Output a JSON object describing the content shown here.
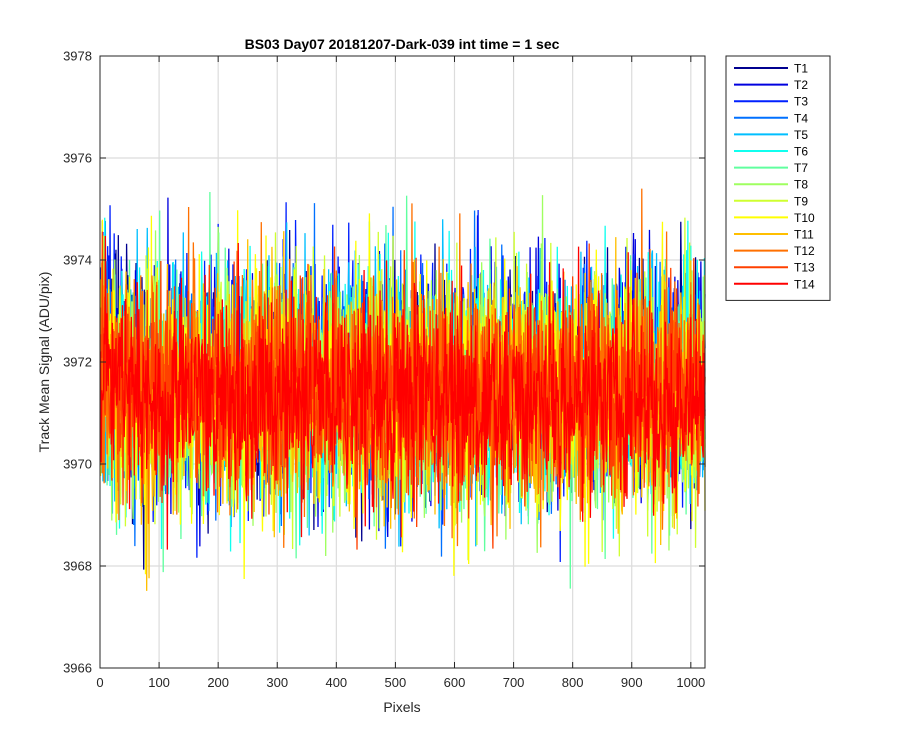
{
  "chart_data": {
    "type": "line",
    "title": "BS03 Day07 20181207-Dark-039 int time = 1 sec",
    "xlabel": "Pixels",
    "ylabel": "Track Mean Signal (ADU/pix)",
    "xlim": [
      0,
      1024
    ],
    "ylim": [
      3966,
      3978
    ],
    "xticks": [
      0,
      100,
      200,
      300,
      400,
      500,
      600,
      700,
      800,
      900,
      1000
    ],
    "yticks": [
      3966,
      3968,
      3970,
      3972,
      3974,
      3976,
      3978
    ],
    "xtick_labels": [
      "0",
      "100",
      "200",
      "300",
      "400",
      "500",
      "600",
      "700",
      "800",
      "900",
      "1000"
    ],
    "ytick_labels": [
      "3966",
      "3968",
      "3970",
      "3972",
      "3974",
      "3976",
      "3978"
    ],
    "grid": true,
    "legend_position": "outside-top-right",
    "series": [
      {
        "name": "T1",
        "color": "#00008F",
        "level": 3971.6,
        "spread": 1.1
      },
      {
        "name": "T2",
        "color": "#0000DF",
        "level": 3971.6,
        "spread": 1.1
      },
      {
        "name": "T3",
        "color": "#0020FF",
        "level": 3971.6,
        "spread": 1.1
      },
      {
        "name": "T4",
        "color": "#0070FF",
        "level": 3971.5,
        "spread": 1.1
      },
      {
        "name": "T5",
        "color": "#00BFFF",
        "level": 3971.5,
        "spread": 1.1
      },
      {
        "name": "T6",
        "color": "#10FFEF",
        "level": 3971.5,
        "spread": 1.1
      },
      {
        "name": "T7",
        "color": "#60FF9F",
        "level": 3971.4,
        "spread": 1.1
      },
      {
        "name": "T8",
        "color": "#9FFF60",
        "level": 3971.4,
        "spread": 1.1
      },
      {
        "name": "T9",
        "color": "#CFFF30",
        "level": 3971.4,
        "spread": 1.1
      },
      {
        "name": "T10",
        "color": "#FFFF00",
        "level": 3971.4,
        "spread": 1.1
      },
      {
        "name": "T11",
        "color": "#FFBF00",
        "level": 3971.4,
        "spread": 1.1
      },
      {
        "name": "T12",
        "color": "#FF7000",
        "level": 3971.4,
        "spread": 1.1
      },
      {
        "name": "T13",
        "color": "#FF4000",
        "level": 3971.4,
        "spread": 1.0
      },
      {
        "name": "T14",
        "color": "#FF0000",
        "level": 3971.3,
        "spread": 1.0
      }
    ]
  }
}
